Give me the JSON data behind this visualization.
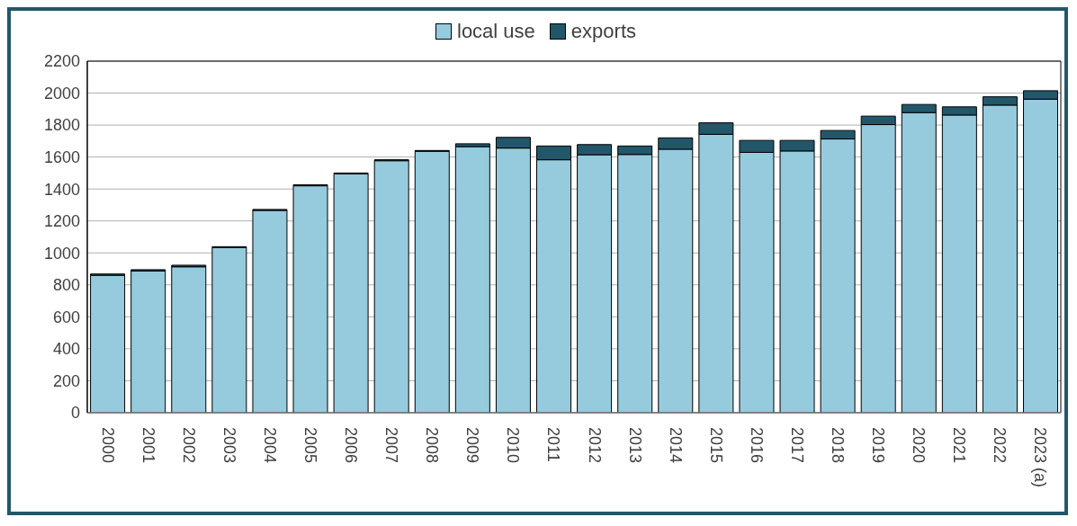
{
  "chart_data": {
    "type": "bar",
    "stacked": true,
    "categories": [
      "2000",
      "2001",
      "2002",
      "2003",
      "2004",
      "2005",
      "2006",
      "2007",
      "2008",
      "2009",
      "2010",
      "2011",
      "2012",
      "2013",
      "2014",
      "2015",
      "2016",
      "2017",
      "2018",
      "2019",
      "2020",
      "2021",
      "2022",
      "2023 (a)"
    ],
    "series": [
      {
        "name": "local use",
        "color": "#96cbdd",
        "values": [
          860,
          887,
          913,
          1033,
          1266,
          1420,
          1495,
          1577,
          1636,
          1665,
          1656,
          1583,
          1614,
          1616,
          1649,
          1742,
          1629,
          1638,
          1713,
          1803,
          1878,
          1863,
          1925,
          1962
        ]
      },
      {
        "name": "exports",
        "color": "#22576a",
        "values": [
          8,
          8,
          10,
          6,
          6,
          6,
          5,
          6,
          5,
          18,
          67,
          86,
          64,
          53,
          71,
          72,
          75,
          66,
          53,
          53,
          51,
          51,
          52,
          53
        ]
      }
    ],
    "ylim": [
      0,
      2200
    ],
    "yticks": [
      0,
      200,
      400,
      600,
      800,
      1000,
      1200,
      1400,
      1600,
      1800,
      2000,
      2200
    ],
    "grid": "y",
    "legend": "top"
  }
}
